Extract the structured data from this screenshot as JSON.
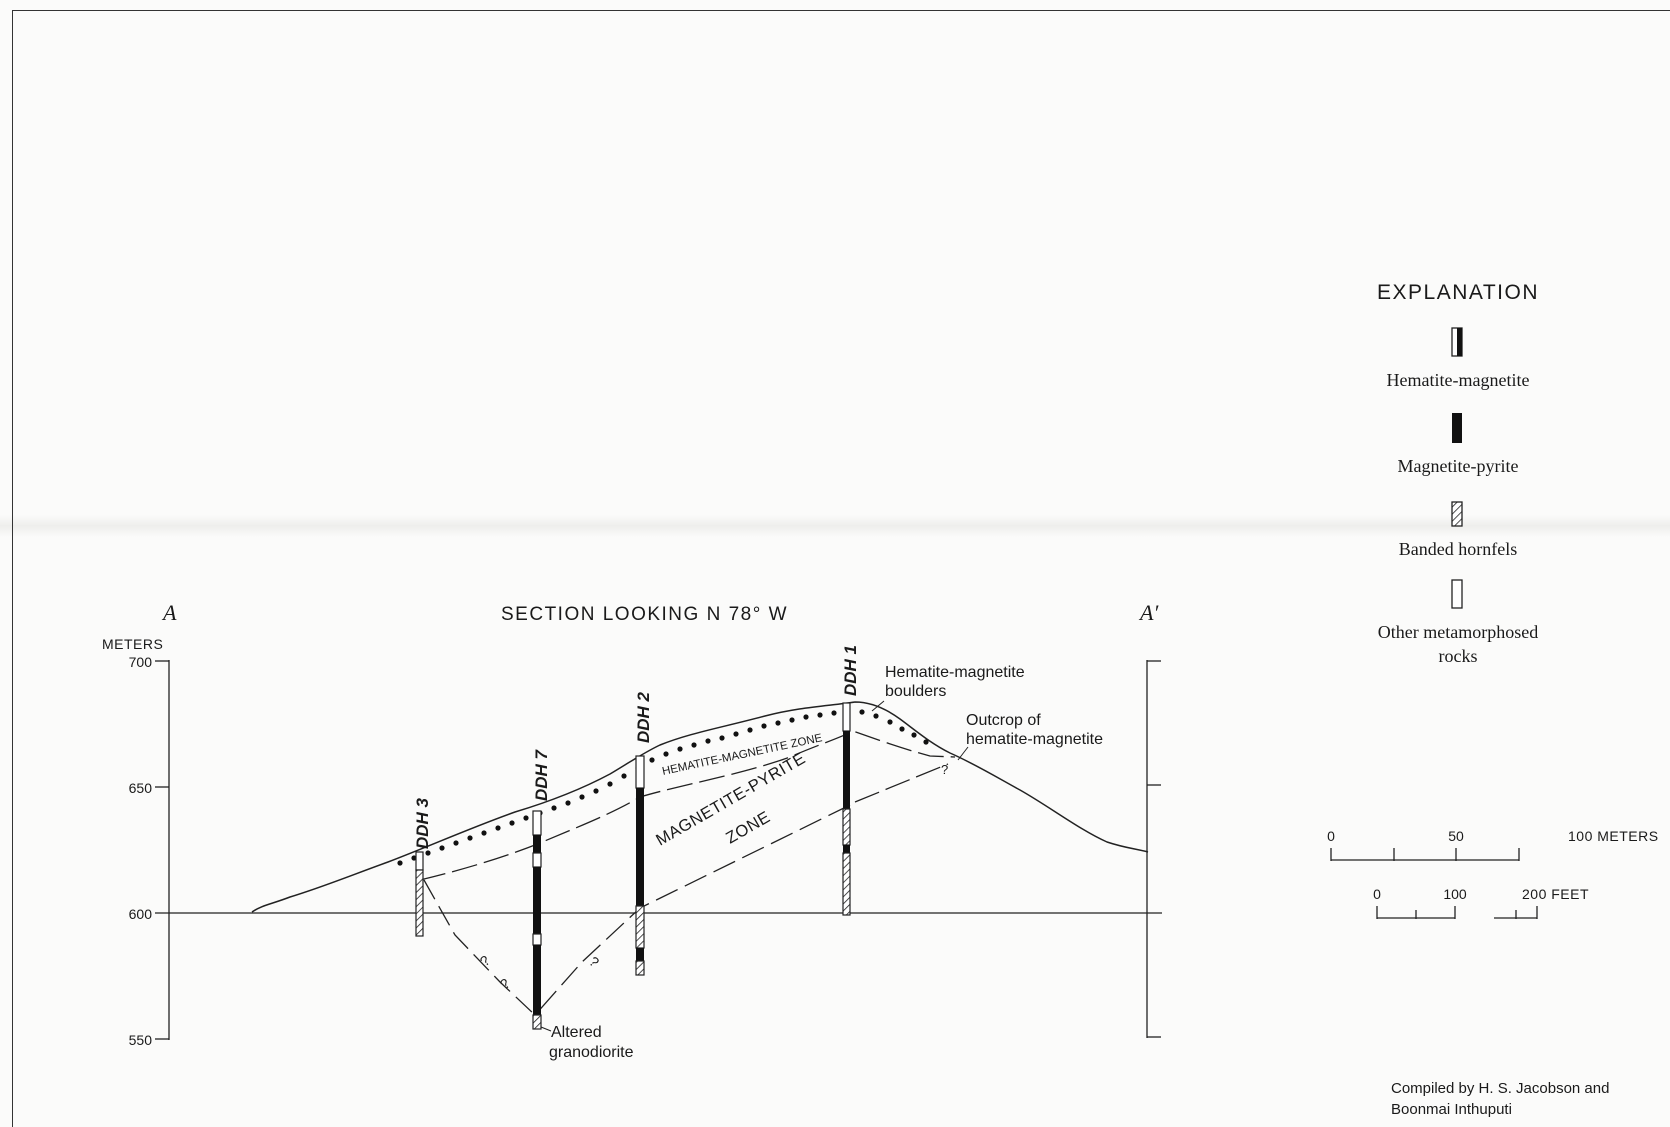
{
  "section": {
    "title": "SECTION LOOKING N 78° W",
    "end_left": "A",
    "end_right": "A′",
    "axis_unit": "METERS",
    "ticks": [
      "700",
      "650",
      "600",
      "550"
    ]
  },
  "drill_holes": [
    {
      "label": "DDH 3"
    },
    {
      "label": "DDH 7"
    },
    {
      "label": "DDH 2"
    },
    {
      "label": "DDH 1"
    }
  ],
  "zones": {
    "hematite": "HEMATITE-MAGNETITE ZONE",
    "magnetite_line1": "MAGNETITE-PYRITE",
    "magnetite_line2": "ZONE"
  },
  "annotations": {
    "boulders_line1": "Hematite-magnetite",
    "boulders_line2": "boulders",
    "outcrop_line1": "Outcrop of",
    "outcrop_line2": "hematite-magnetite",
    "altered_line1": "Altered",
    "altered_line2": "granodiorite",
    "query": "?"
  },
  "explanation": {
    "title": "EXPLANATION",
    "items": [
      {
        "label": "Hematite-magnetite"
      },
      {
        "label": "Magnetite-pyrite"
      },
      {
        "label": "Banded hornfels"
      },
      {
        "label_line1": "Other metamorphosed",
        "label_line2": "rocks"
      }
    ]
  },
  "scale": {
    "meters": [
      "0",
      "50",
      "100 METERS"
    ],
    "feet": [
      "0",
      "100",
      "200 FEET"
    ]
  },
  "credit": {
    "line1": "Compiled by H. S. Jacobson and",
    "line2": "Boonmai Inthuputi"
  }
}
